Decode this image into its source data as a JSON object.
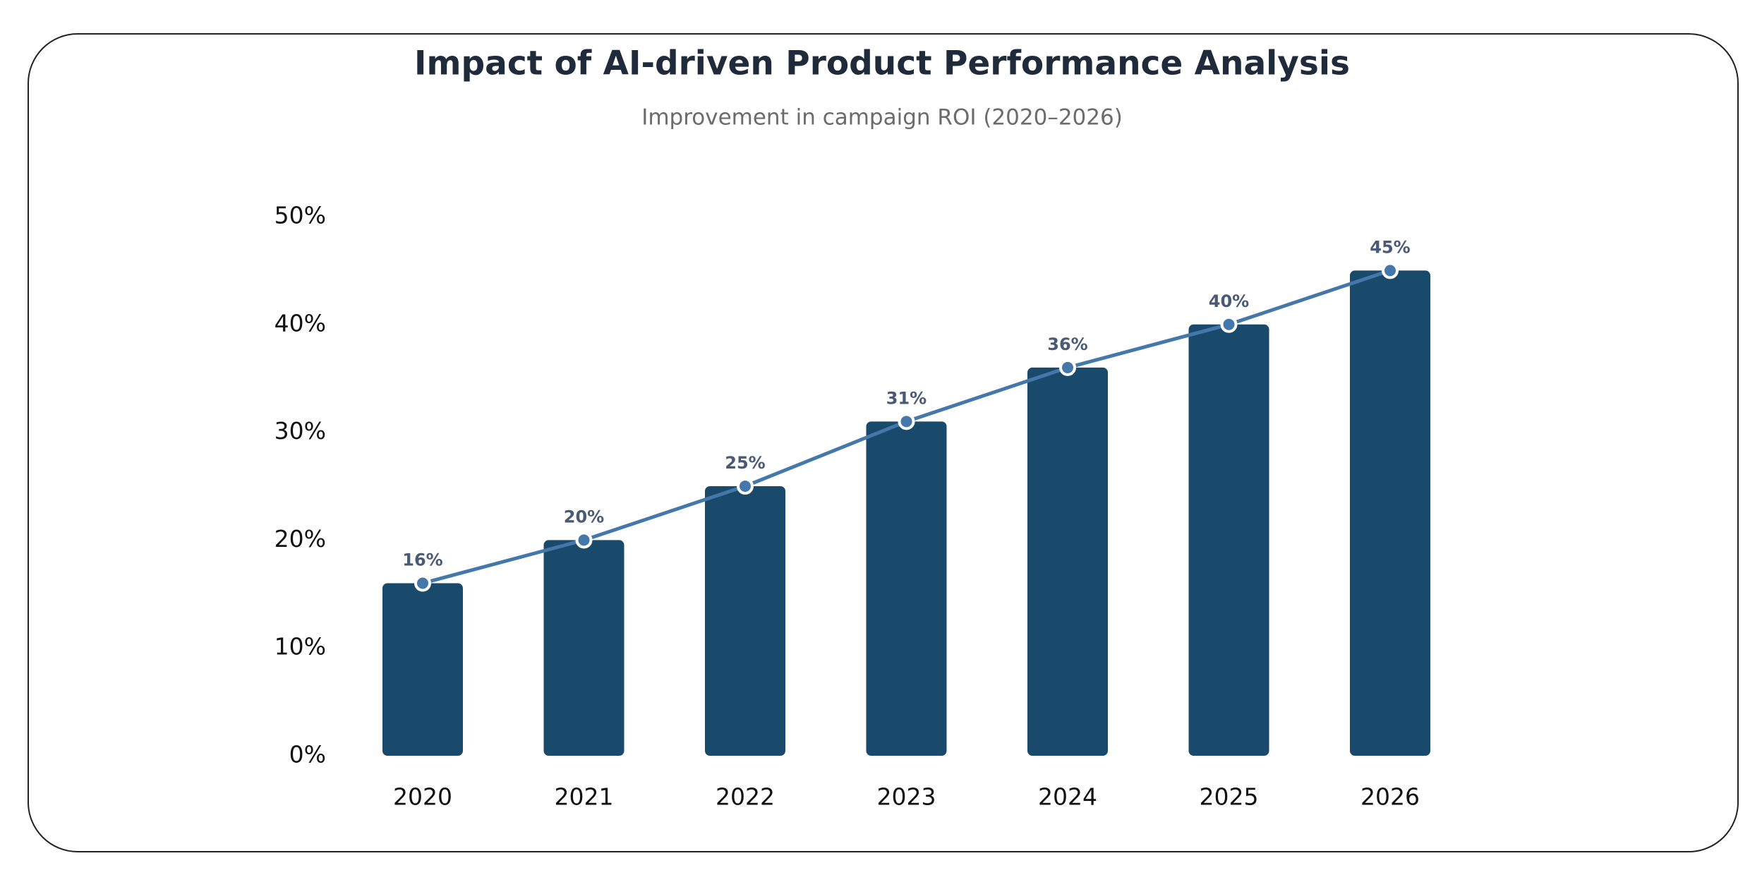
{
  "chart_data": {
    "type": "bar",
    "title": "Impact of AI-driven Product Performance Analysis",
    "subtitle": "Improvement in campaign ROI (2020–2026)",
    "categories": [
      "2020",
      "2021",
      "2022",
      "2023",
      "2024",
      "2025",
      "2026"
    ],
    "values": [
      16,
      20,
      25,
      31,
      36,
      40,
      45
    ],
    "value_labels": [
      "16%",
      "20%",
      "25%",
      "31%",
      "36%",
      "40%",
      "45%"
    ],
    "color": "#1a4a6b",
    "line": true,
    "line_color": "#4477aa",
    "ylim": [
      0,
      50
    ],
    "yticks": [
      {
        "value": 0,
        "label": "0%"
      },
      {
        "value": 10,
        "label": "10%"
      },
      {
        "value": 20,
        "label": "20%"
      },
      {
        "value": 30,
        "label": "30%"
      },
      {
        "value": 40,
        "label": "40%"
      },
      {
        "value": 50,
        "label": "50%"
      }
    ],
    "grid": false
  }
}
